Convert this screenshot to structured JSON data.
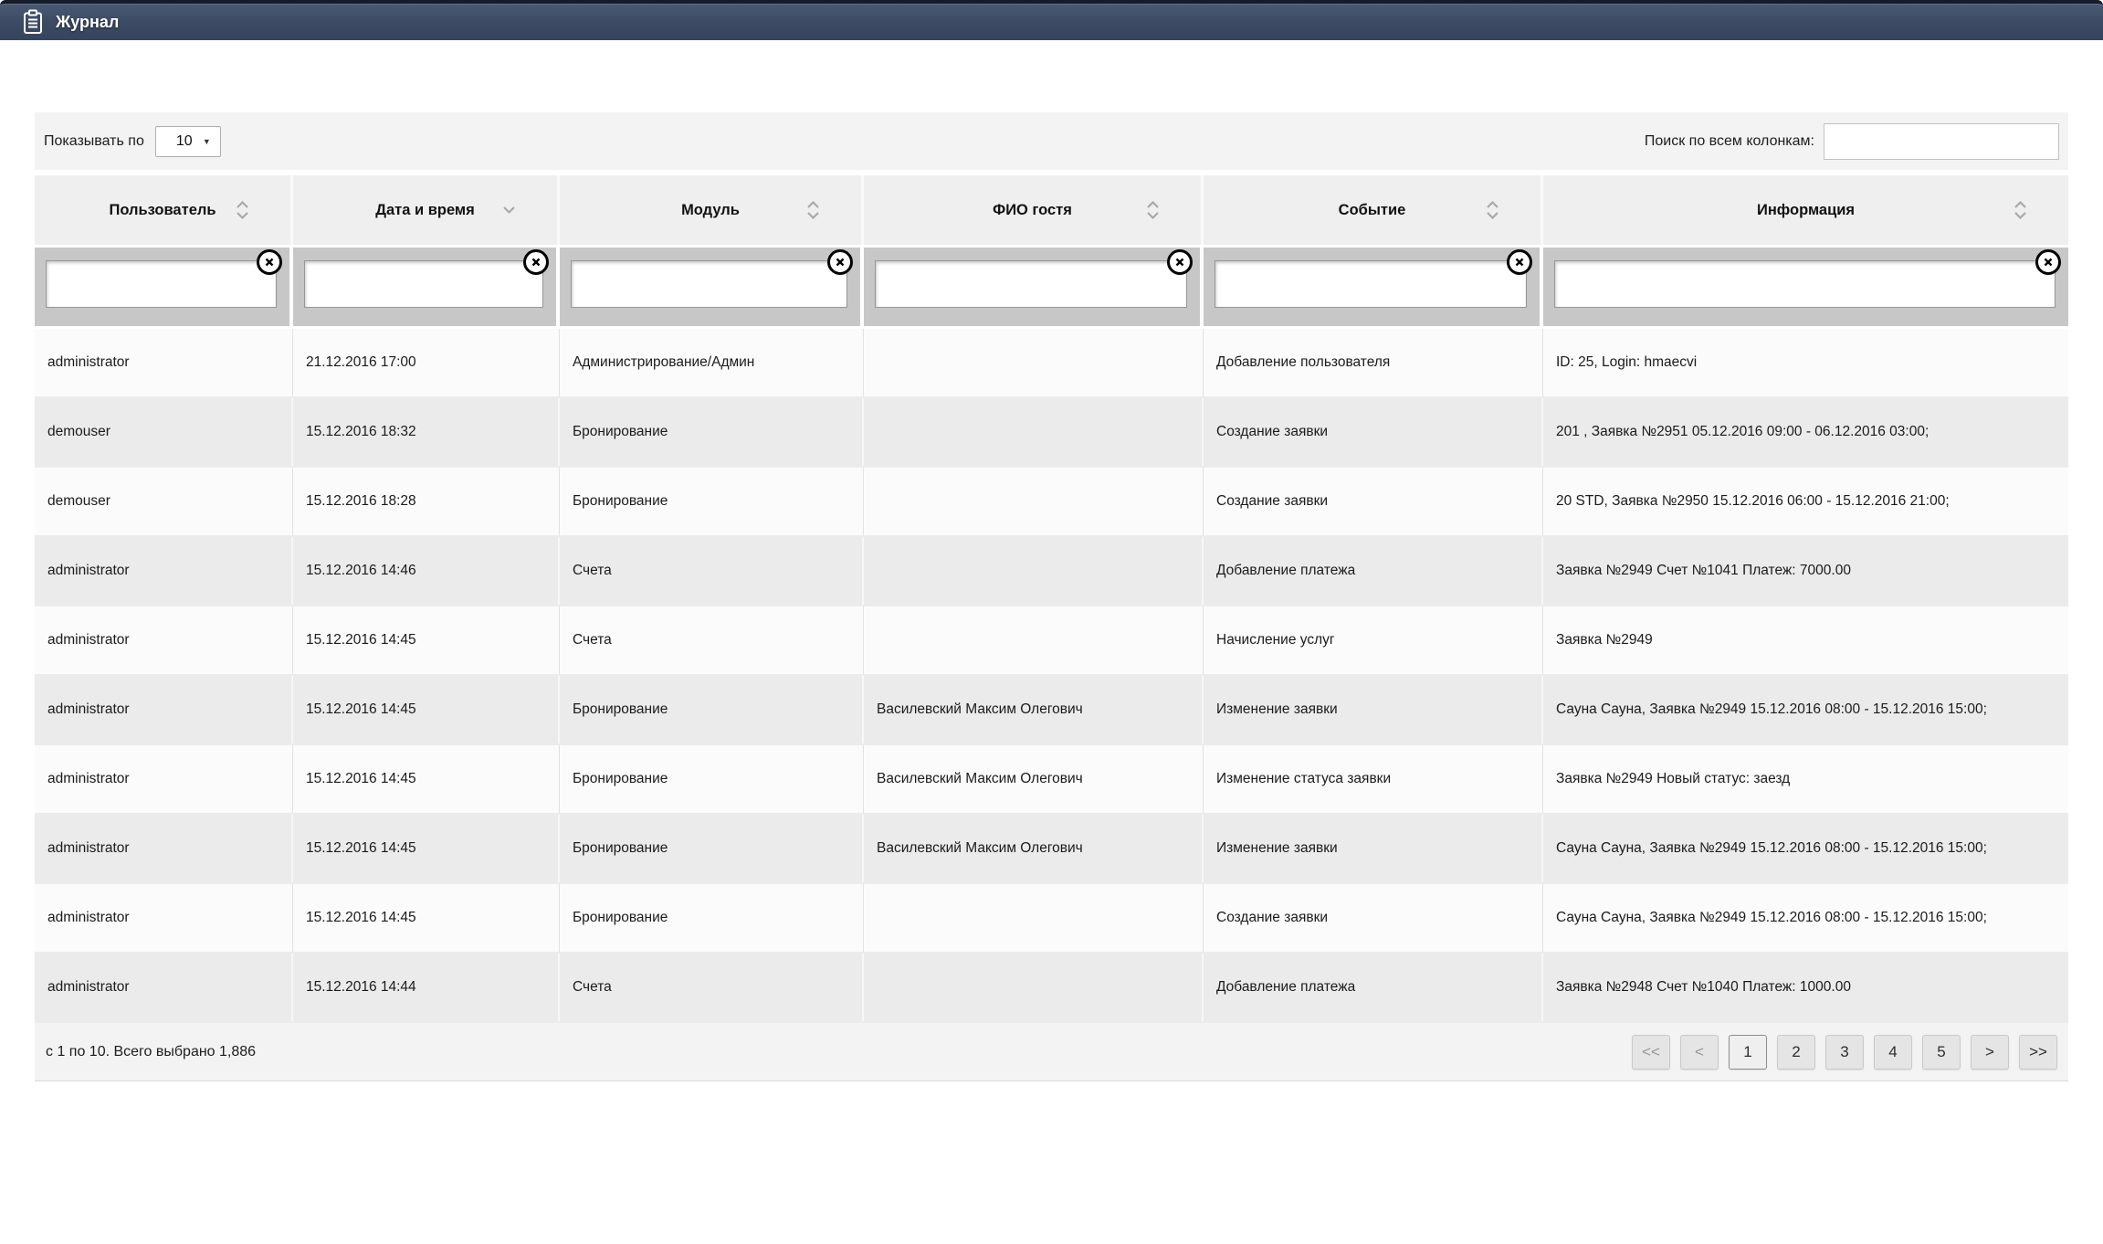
{
  "header": {
    "title": "Журнал",
    "icon": "clipboard-icon"
  },
  "controls": {
    "page_size_label": "Показывать по",
    "page_size_value": "10",
    "search_label": "Поиск по всем колонкам:",
    "search_value": ""
  },
  "table": {
    "columns": [
      {
        "label": "Пользователь",
        "sort": "updown",
        "filter_value": ""
      },
      {
        "label": "Дата и время",
        "sort": "down",
        "filter_value": ""
      },
      {
        "label": "Модуль",
        "sort": "updown",
        "filter_value": ""
      },
      {
        "label": "ФИО гостя",
        "sort": "updown",
        "filter_value": ""
      },
      {
        "label": "Событие",
        "sort": "updown",
        "filter_value": ""
      },
      {
        "label": "Информация",
        "sort": "updown",
        "filter_value": ""
      }
    ],
    "rows": [
      [
        "administrator",
        "21.12.2016 17:00",
        "Администрирование/Админ",
        "",
        "Добавление пользователя",
        "ID: 25, Login: hmaecvi"
      ],
      [
        "demouser",
        "15.12.2016 18:32",
        "Бронирование",
        "",
        "Создание заявки",
        "201 , Заявка №2951 05.12.2016 09:00 - 06.12.2016 03:00;"
      ],
      [
        "demouser",
        "15.12.2016 18:28",
        "Бронирование",
        "",
        "Создание заявки",
        "20 STD, Заявка №2950 15.12.2016 06:00 - 15.12.2016 21:00;"
      ],
      [
        "administrator",
        "15.12.2016 14:46",
        "Счета",
        "",
        "Добавление платежа",
        "Заявка №2949 Счет №1041 Платеж: 7000.00"
      ],
      [
        "administrator",
        "15.12.2016 14:45",
        "Счета",
        "",
        "Начисление услуг",
        "Заявка №2949"
      ],
      [
        "administrator",
        "15.12.2016 14:45",
        "Бронирование",
        "Василевский Максим Олегович",
        "Изменение заявки",
        "Сауна Сауна, Заявка №2949 15.12.2016 08:00 - 15.12.2016 15:00;"
      ],
      [
        "administrator",
        "15.12.2016 14:45",
        "Бронирование",
        "Василевский Максим Олегович",
        "Изменение статуса заявки",
        "Заявка №2949 Новый статус: заезд"
      ],
      [
        "administrator",
        "15.12.2016 14:45",
        "Бронирование",
        "Василевский Максим Олегович",
        "Изменение заявки",
        "Сауна Сауна, Заявка №2949 15.12.2016 08:00 - 15.12.2016 15:00;"
      ],
      [
        "administrator",
        "15.12.2016 14:45",
        "Бронирование",
        "",
        "Создание заявки",
        "Сауна Сауна, Заявка №2949 15.12.2016 08:00 - 15.12.2016 15:00;"
      ],
      [
        "administrator",
        "15.12.2016 14:44",
        "Счета",
        "",
        "Добавление платежа",
        "Заявка №2948 Счет №1040 Платеж: 1000.00"
      ]
    ]
  },
  "footer": {
    "summary": "с 1 по 10. Всего выбрано 1,886",
    "pagination": [
      {
        "label": "<<",
        "state": "disabled"
      },
      {
        "label": "<",
        "state": "disabled"
      },
      {
        "label": "1",
        "state": "active"
      },
      {
        "label": "2",
        "state": "normal"
      },
      {
        "label": "3",
        "state": "normal"
      },
      {
        "label": "4",
        "state": "normal"
      },
      {
        "label": "5",
        "state": "normal"
      },
      {
        "label": ">",
        "state": "normal"
      },
      {
        "label": ">>",
        "state": "normal"
      }
    ]
  },
  "colors": {
    "topbar_bg": "#3b4a62",
    "topbar_border": "#151d2b",
    "row_alt_bg": "#ebebeb",
    "filter_cell_bg": "#c7c7c7",
    "panel_strip_bg": "#f3f3f3"
  }
}
